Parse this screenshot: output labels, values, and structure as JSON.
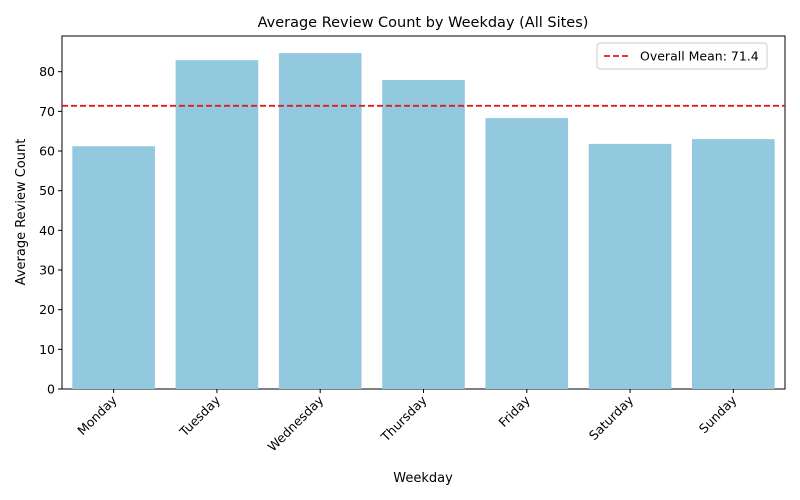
{
  "chart_data": {
    "type": "bar",
    "title": "Average Review Count by Weekday (All Sites)",
    "xlabel": "Weekday",
    "ylabel": "Average Review Count",
    "categories": [
      "Monday",
      "Tuesday",
      "Wednesday",
      "Thursday",
      "Friday",
      "Saturday",
      "Sunday"
    ],
    "values": [
      61.2,
      82.9,
      84.7,
      77.9,
      68.3,
      61.8,
      63.0
    ],
    "ylim": [
      0,
      89
    ],
    "yticks": [
      0,
      10,
      20,
      30,
      40,
      50,
      60,
      70,
      80
    ],
    "ytick_labels": [
      "0",
      "10",
      "20",
      "30",
      "40",
      "50",
      "60",
      "70",
      "80"
    ],
    "bar_color": "#92c9de",
    "reference_line": {
      "value": 71.4,
      "label": "Overall Mean: 71.4",
      "color": "#e41a1c",
      "style": "dashed"
    },
    "legend": {
      "position": "top-right"
    },
    "grid": false
  }
}
